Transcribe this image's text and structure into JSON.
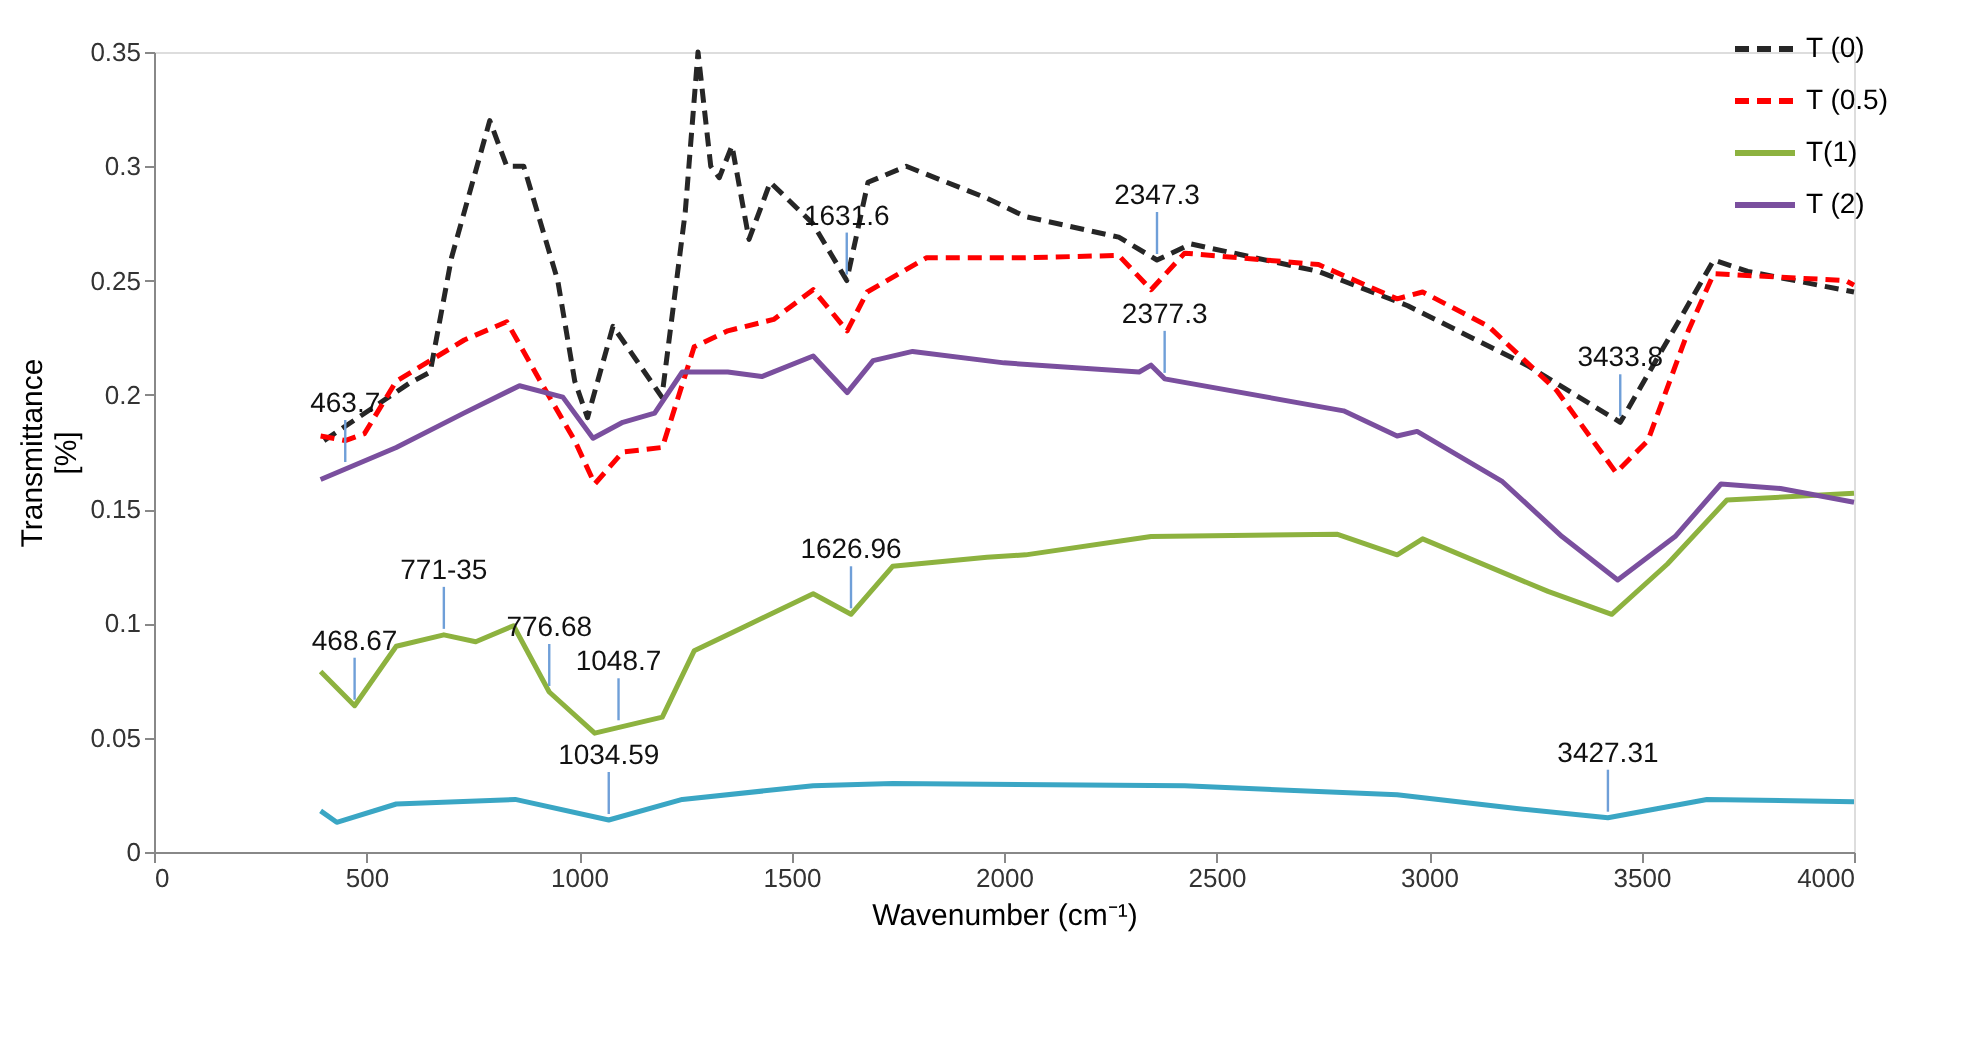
{
  "chart_data": {
    "type": "line",
    "xlabel": "Wavenumber  (cm⁻¹)",
    "ylabel": "Transmittance [%]",
    "xlim": [
      0,
      4000
    ],
    "xticks": [
      0,
      500,
      1000,
      1500,
      2000,
      2500,
      3000,
      3500,
      4000
    ],
    "ylim": [
      0,
      0.35
    ],
    "yticks": [
      0,
      0.05,
      0.1,
      0.15,
      0.2,
      0.25,
      0.3,
      0.35
    ],
    "grid": false,
    "legend": "top right",
    "marker": "none",
    "series": [
      {
        "name": "T (0)",
        "color": "#262626",
        "line_style": "dashed",
        "x": [
          400,
          600,
          650,
          700,
          790,
          830,
          870,
          950,
          990,
          1020,
          1080,
          1195,
          1250,
          1280,
          1310,
          1330,
          1360,
          1400,
          1450,
          1550,
          1630,
          1680,
          1770,
          1960,
          2050,
          2270,
          2360,
          2440,
          2740,
          2950,
          3230,
          3450,
          3590,
          3670,
          3750,
          4000
        ],
        "values": [
          0.18,
          0.205,
          0.21,
          0.26,
          0.32,
          0.3,
          0.3,
          0.25,
          0.206,
          0.19,
          0.23,
          0.199,
          0.28,
          0.35,
          0.3,
          0.295,
          0.309,
          0.268,
          0.293,
          0.275,
          0.25,
          0.293,
          0.3,
          0.286,
          0.278,
          0.269,
          0.259,
          0.266,
          0.254,
          0.239,
          0.213,
          0.188,
          0.233,
          0.259,
          0.254,
          0.245
        ]
      },
      {
        "name": "T (0.5)",
        "color": "#ff0000",
        "line_style": "dashed",
        "x": [
          392,
          450,
          495,
          570,
          730,
          830,
          915,
          990,
          1037,
          1103,
          1196,
          1271,
          1350,
          1458,
          1551,
          1631,
          1678,
          1818,
          2050,
          2270,
          2346,
          2425,
          2740,
          2925,
          2985,
          3140,
          3300,
          3440,
          3515,
          3610,
          3670,
          3980,
          4000
        ],
        "values": [
          0.182,
          0.18,
          0.183,
          0.206,
          0.224,
          0.232,
          0.204,
          0.18,
          0.161,
          0.175,
          0.177,
          0.221,
          0.228,
          0.233,
          0.246,
          0.228,
          0.245,
          0.26,
          0.26,
          0.261,
          0.246,
          0.262,
          0.257,
          0.242,
          0.245,
          0.23,
          0.202,
          0.166,
          0.18,
          0.228,
          0.253,
          0.25,
          0.248
        ]
      },
      {
        "name": "T(1)",
        "color": "#8db23f",
        "line_style": "solid",
        "x": [
          392,
          472,
          570,
          682,
          757,
          846,
          930,
          1037,
          1196,
          1271,
          1383,
          1551,
          1640,
          1738,
          1960,
          2051,
          2346,
          2785,
          2925,
          2985,
          3280,
          3430,
          3561,
          3701,
          4000
        ],
        "values": [
          0.079,
          0.064,
          0.09,
          0.095,
          0.092,
          0.099,
          0.07,
          0.052,
          0.059,
          0.088,
          0.098,
          0.113,
          0.104,
          0.125,
          0.129,
          0.13,
          0.138,
          0.139,
          0.13,
          0.137,
          0.114,
          0.104,
          0.126,
          0.154,
          0.157
        ]
      },
      {
        "name": "T (2)",
        "color": "#7a4f9e",
        "line_style": "solid",
        "x": [
          392,
          570,
          729,
          860,
          962,
          1033,
          1103,
          1178,
          1243,
          1350,
          1430,
          1551,
          1631,
          1692,
          1785,
          2000,
          2318,
          2346,
          2378,
          2799,
          2925,
          2972,
          3173,
          3313,
          3444,
          3579,
          3687,
          3827,
          4000
        ],
        "values": [
          0.163,
          0.177,
          0.192,
          0.204,
          0.199,
          0.181,
          0.188,
          0.192,
          0.21,
          0.21,
          0.208,
          0.217,
          0.201,
          0.215,
          0.219,
          0.214,
          0.21,
          0.213,
          0.207,
          0.193,
          0.182,
          0.184,
          0.162,
          0.138,
          0.119,
          0.138,
          0.161,
          0.159,
          0.153
        ]
      },
      {
        "color": "#3aa6c4",
        "line_style": "solid",
        "x": [
          392,
          430,
          570,
          850,
          1070,
          1243,
          1551,
          1738,
          2425,
          2925,
          3206,
          3421,
          3654,
          4000
        ],
        "values": [
          0.018,
          0.013,
          0.021,
          0.023,
          0.014,
          0.023,
          0.029,
          0.03,
          0.029,
          0.025,
          0.019,
          0.015,
          0.023,
          0.022
        ]
      }
    ],
    "annotations": [
      {
        "text": "463.7",
        "x": 450,
        "y": 0.168
      },
      {
        "text": "1048.7",
        "x": 1093,
        "y": 0.055
      },
      {
        "text": "1631.6",
        "x": 1630,
        "y": 0.25
      },
      {
        "text": "2347.3",
        "x": 2360,
        "y": 0.259
      },
      {
        "text": "2377.3",
        "x": 2378,
        "y": 0.207
      },
      {
        "text": "3433.8",
        "x": 3450,
        "y": 0.188
      },
      {
        "text": "468.67",
        "x": 472,
        "y": 0.064
      },
      {
        "text": "771-35",
        "x": 682,
        "y": 0.095
      },
      {
        "text": "776.68",
        "x": 930,
        "y": 0.07
      },
      {
        "text": "1034.59",
        "x": 1070,
        "y": 0.014
      },
      {
        "text": "1626.96",
        "x": 1640,
        "y": 0.104
      },
      {
        "text": "3427.31",
        "x": 3421,
        "y": 0.015
      }
    ]
  }
}
